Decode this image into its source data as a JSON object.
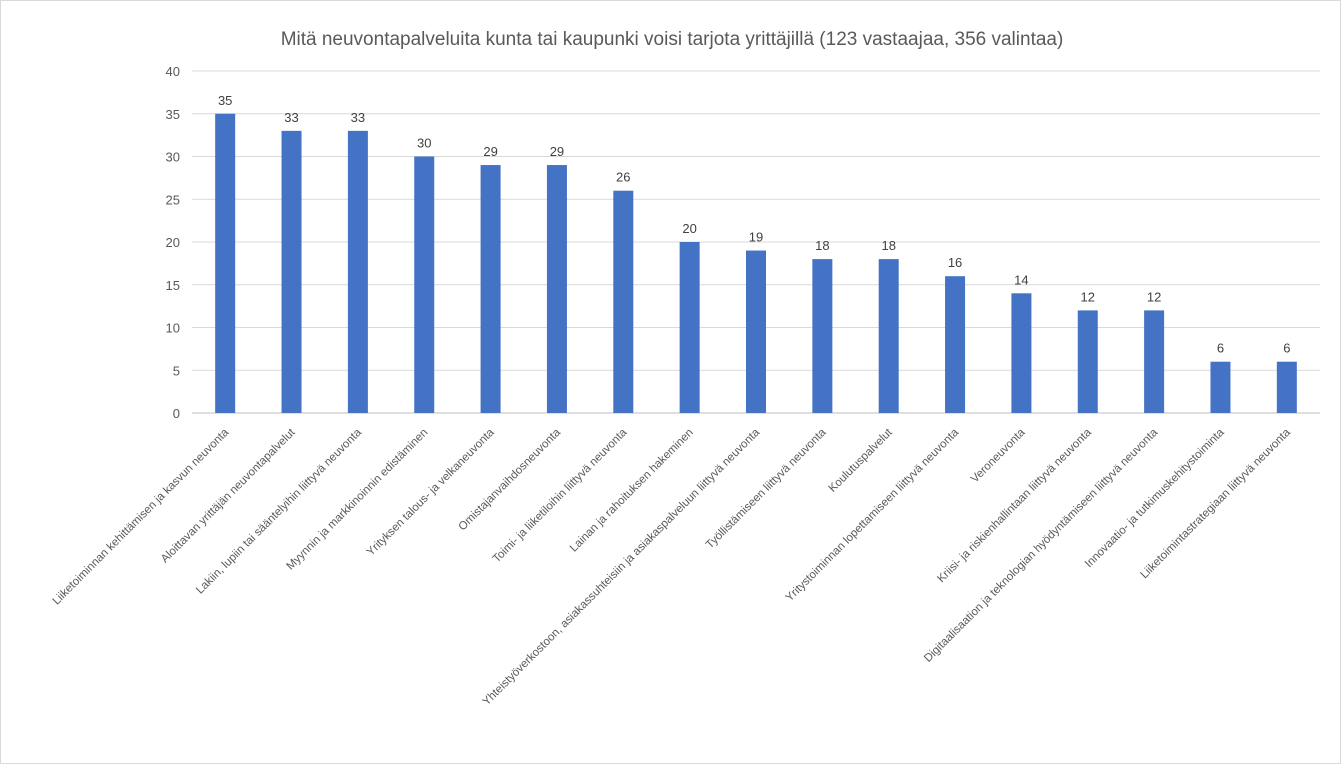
{
  "chart_data": {
    "type": "bar",
    "title": "Mitä neuvontapalveluita kunta tai kaupunki voisi tarjota yrittäjillä (123 vastaajaa, 356 valintaa)",
    "categories": [
      "Liiketoiminnan kehittämisen ja kasvun neuvonta",
      "Aloittavan yrittäjän neuvontapalvelut",
      "Lakiin, lupiin tai sääntelyihin liittyvä neuvonta",
      "Myynnin ja markkinoinnin edistäminen",
      "Yrityksen talous- ja velkaneuvonta",
      "Omistajanvaihdosneuvonta",
      "Toimi- ja liiketiloihin liittyvä neuvonta",
      "Lainan ja rahoituksen hakeminen",
      "Yhteistyöverkostoon, asiakassuhteisiin ja asiakaspalveluun liittyvä neuvonta",
      "Työllistämiseen liittyvä neuvonta",
      "Koulutuspalvelut",
      "Yritystoiminnan lopettamiseen liittyvä neuvonta",
      "Veroneuvonta",
      "Kriisi- ja riskienhallintaan liittyvä neuvonta",
      "Digitaalisaation ja teknologian hyödyntämiseen liittyvä neuvonta",
      "Innovaatio- ja tutkimuskehitystoiminta",
      "Liiketoimintastrategiaan liittyvä neuvonta"
    ],
    "values": [
      35,
      33,
      33,
      30,
      29,
      29,
      26,
      20,
      19,
      18,
      18,
      16,
      14,
      12,
      12,
      6,
      6
    ],
    "ylim": [
      0,
      40
    ],
    "yticks": [
      0,
      5,
      10,
      15,
      20,
      25,
      30,
      35,
      40
    ],
    "data_labels": true,
    "grid": true,
    "legend": "none",
    "bar_color": "#4472c4"
  }
}
